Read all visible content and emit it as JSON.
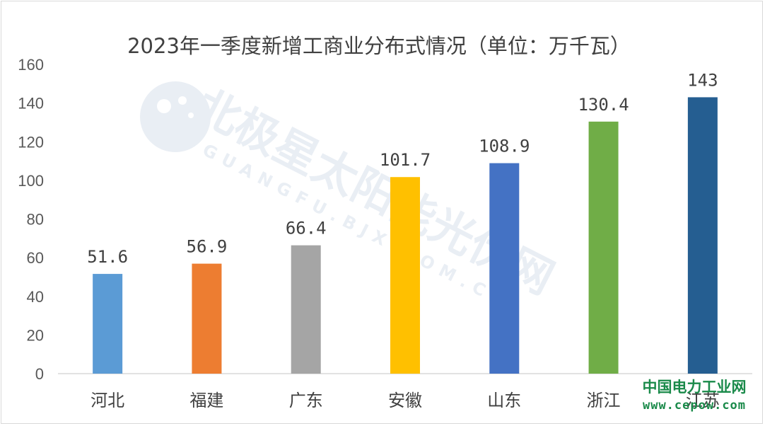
{
  "chart_data": {
    "type": "bar",
    "title": "2023年一季度新增工商业分布式情况（单位：万千瓦）",
    "categories": [
      "河北",
      "福建",
      "广东",
      "安徽",
      "山东",
      "浙江",
      "江苏"
    ],
    "values": [
      51.6,
      56.9,
      66.4,
      101.7,
      108.9,
      130.4,
      143
    ],
    "value_labels": [
      "51.6",
      "56.9",
      "66.4",
      "101.7",
      "108.9",
      "130.4",
      "143"
    ],
    "colors": [
      "#5b9bd5",
      "#ed7d31",
      "#a5a5a5",
      "#ffc000",
      "#4472c4",
      "#70ad47",
      "#255e91"
    ],
    "ylim": [
      0,
      160
    ],
    "yticks": [
      0,
      20,
      40,
      60,
      80,
      100,
      120,
      140,
      160
    ],
    "xlabel": "",
    "ylabel": "",
    "grid": false,
    "legend": "none"
  },
  "watermark": {
    "text": "北极星太阳能光伏网",
    "text_en": "GUANGFU.BJX.COM.CN"
  },
  "brand": {
    "name": "中国电力工业网",
    "url": "www.cepow.com"
  }
}
